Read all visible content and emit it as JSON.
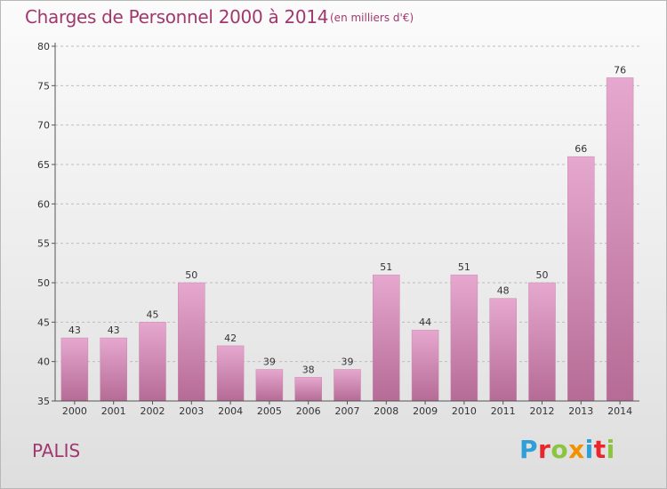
{
  "header": {
    "title": "Charges de Personnel 2000 à 2014",
    "subtitle": "(en milliers d'€)"
  },
  "footer": {
    "commune": "PALIS",
    "logo_text": "Proxiti",
    "logo_colors": [
      "#2f9fd8",
      "#e8262b",
      "#8bc43f",
      "#f39200",
      "#2f9fd8",
      "#e8262b",
      "#8bc43f"
    ]
  },
  "colors": {
    "bar_light": "#e6a8cf",
    "bar_dark": "#b56b95",
    "text_accent": "#a0386e",
    "axis": "#555555",
    "grid": "#bdbdbd"
  },
  "chart_data": {
    "type": "bar",
    "title": "Charges de Personnel 2000 à 2014",
    "subtitle": "(en milliers d'€)",
    "categories": [
      "2000",
      "2001",
      "2002",
      "2003",
      "2004",
      "2005",
      "2006",
      "2007",
      "2008",
      "2009",
      "2010",
      "2011",
      "2012",
      "2013",
      "2014"
    ],
    "values": [
      43,
      43,
      45,
      50,
      42,
      39,
      38,
      39,
      51,
      44,
      51,
      48,
      50,
      66,
      76
    ],
    "ylim": [
      35,
      80
    ],
    "yticks": [
      35,
      40,
      45,
      50,
      55,
      60,
      65,
      70,
      75,
      80
    ],
    "grid": true,
    "data_labels": true
  }
}
